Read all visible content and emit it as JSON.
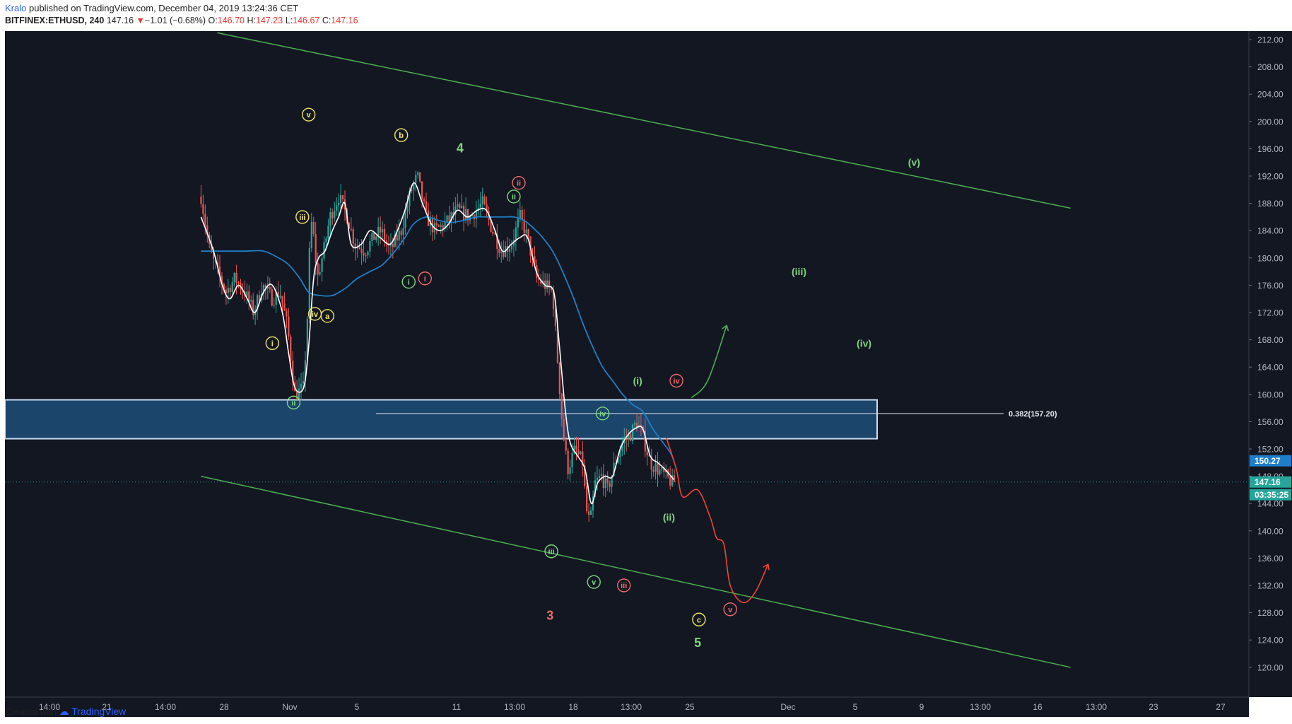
{
  "header": {
    "author": "Kralo",
    "published": "published on TradingView.com, December 04, 2019 13:24:36 CET",
    "symbol": "BITFINEX:ETHUSD, 240",
    "last": "147.16",
    "change": "−1.01 (−0.68%)",
    "o_label": "O:",
    "o": "146.70",
    "h_label": "H:",
    "h": "147.23",
    "l_label": "L:",
    "l": "146.67",
    "c_label": "C:",
    "c": "147.16"
  },
  "footer": {
    "created_with": "Created with",
    "brand": "TradingView"
  },
  "colors": {
    "background": "#131722",
    "up": "#26a69a",
    "down": "#ef5350",
    "ma_fast": "#ffffff",
    "ma_slow": "#1e7ec8",
    "channel": "#4caf50",
    "zone_fill": "#1f4e79",
    "zone_border": "#c8dcf0",
    "projection_green": "#4caf50",
    "projection_red": "#f44336",
    "label_yellow": "#f5e663",
    "label_green": "#7fd87f",
    "label_red": "#f06a6a"
  },
  "chart_data": {
    "type": "candlestick",
    "symbol": "BITFINEX:ETHUSD",
    "interval": "240",
    "ylim": [
      118,
      214
    ],
    "y_ticks": [
      "212.00",
      "208.00",
      "204.00",
      "200.00",
      "196.00",
      "192.00",
      "188.00",
      "184.00",
      "180.00",
      "176.00",
      "172.00",
      "168.00",
      "164.00",
      "160.00",
      "156.00",
      "152.00",
      "148.00",
      "144.00",
      "140.00",
      "136.00",
      "132.00",
      "128.00",
      "124.00",
      "120.00"
    ],
    "x_ticks": [
      "14:00",
      "21",
      "14:00",
      "28",
      "Nov",
      "5",
      "11",
      "13:00",
      "18",
      "13:00",
      "25",
      "Dec",
      "5",
      "9",
      "13:00",
      "16",
      "13:00",
      "23",
      "27"
    ],
    "price_labels": [
      {
        "text": "150.27",
        "value": 150.27,
        "kind": "ma"
      },
      {
        "text": "147.16",
        "value": 147.16,
        "kind": "last"
      },
      {
        "text": "03:35:25",
        "value": 145.3,
        "kind": "timer"
      }
    ],
    "last_price": 147.16,
    "fib_level": {
      "text": "0.382(157.20)",
      "value": 157.2
    },
    "resistance_zone": {
      "low": 153.5,
      "high": 159.2
    },
    "price_path": [
      {
        "day": -12.5,
        "price": 189
      },
      {
        "day": -11.8,
        "price": 181
      },
      {
        "day": -11.2,
        "price": 178
      },
      {
        "day": -10.5,
        "price": 175
      },
      {
        "day": -9.8,
        "price": 177
      },
      {
        "day": -9.0,
        "price": 175
      },
      {
        "day": -8.3,
        "price": 172
      },
      {
        "day": -7.6,
        "price": 176
      },
      {
        "day": -6.8,
        "price": 174
      },
      {
        "day": -6.2,
        "price": 175
      },
      {
        "day": -5.6,
        "price": 170
      },
      {
        "day": -5.0,
        "price": 160
      },
      {
        "day": -4.3,
        "price": 161
      },
      {
        "day": -3.95,
        "price": 173
      },
      {
        "day": -3.75,
        "price": 186
      },
      {
        "day": -3.5,
        "price": 183
      },
      {
        "day": -3.2,
        "price": 177
      },
      {
        "day": -2.7,
        "price": 181
      },
      {
        "day": -2.2,
        "price": 186
      },
      {
        "day": -1.5,
        "price": 189
      },
      {
        "day": -0.8,
        "price": 186
      },
      {
        "day": -0.2,
        "price": 182
      },
      {
        "day": 0.6,
        "price": 181
      },
      {
        "day": 1.3,
        "price": 183
      },
      {
        "day": 1.9,
        "price": 184
      },
      {
        "day": 2.6,
        "price": 181
      },
      {
        "day": 3.5,
        "price": 184
      },
      {
        "day": 4.3,
        "price": 190
      },
      {
        "day": 4.8,
        "price": 192
      },
      {
        "day": 5.5,
        "price": 186
      },
      {
        "day": 6.2,
        "price": 184
      },
      {
        "day": 7.0,
        "price": 185
      },
      {
        "day": 8.0,
        "price": 187
      },
      {
        "day": 9.0,
        "price": 186
      },
      {
        "day": 10.0,
        "price": 188
      },
      {
        "day": 10.8,
        "price": 184
      },
      {
        "day": 11.5,
        "price": 181
      },
      {
        "day": 12.3,
        "price": 182
      },
      {
        "day": 13.0,
        "price": 186
      },
      {
        "day": 13.6,
        "price": 183
      },
      {
        "day": 14.3,
        "price": 177
      },
      {
        "day": 15.0,
        "price": 176
      },
      {
        "day": 15.6,
        "price": 175
      },
      {
        "day": 16.0,
        "price": 165
      },
      {
        "day": 16.4,
        "price": 155
      },
      {
        "day": 16.8,
        "price": 149
      },
      {
        "day": 17.4,
        "price": 152
      },
      {
        "day": 18.0,
        "price": 150
      },
      {
        "day": 18.3,
        "price": 143
      },
      {
        "day": 18.6,
        "price": 141
      },
      {
        "day": 19.0,
        "price": 147
      },
      {
        "day": 19.5,
        "price": 148
      },
      {
        "day": 20.0,
        "price": 146
      },
      {
        "day": 20.6,
        "price": 150
      },
      {
        "day": 21.2,
        "price": 153
      },
      {
        "day": 21.8,
        "price": 154
      },
      {
        "day": 22.3,
        "price": 156
      },
      {
        "day": 22.8,
        "price": 154
      },
      {
        "day": 23.4,
        "price": 150
      },
      {
        "day": 24.0,
        "price": 149
      },
      {
        "day": 24.6,
        "price": 148
      },
      {
        "day": 25.2,
        "price": 147
      },
      {
        "day": 25.4,
        "price": 147.2
      }
    ],
    "ma_fast_path": [
      {
        "day": -12.5,
        "price": 186
      },
      {
        "day": -11.5,
        "price": 181
      },
      {
        "day": -10.8,
        "price": 176
      },
      {
        "day": -10.2,
        "price": 174
      },
      {
        "day": -9.5,
        "price": 176
      },
      {
        "day": -8.8,
        "price": 174
      },
      {
        "day": -8.2,
        "price": 172
      },
      {
        "day": -7.5,
        "price": 175
      },
      {
        "day": -6.8,
        "price": 176
      },
      {
        "day": -6.0,
        "price": 172
      },
      {
        "day": -5.5,
        "price": 166
      },
      {
        "day": -5.0,
        "price": 161
      },
      {
        "day": -4.3,
        "price": 161
      },
      {
        "day": -3.9,
        "price": 167
      },
      {
        "day": -3.5,
        "price": 177
      },
      {
        "day": -3.1,
        "price": 180
      },
      {
        "day": -2.6,
        "price": 181
      },
      {
        "day": -2.0,
        "price": 184
      },
      {
        "day": -1.5,
        "price": 186
      },
      {
        "day": -1.0,
        "price": 188
      },
      {
        "day": -0.5,
        "price": 182
      },
      {
        "day": 0.3,
        "price": 182
      },
      {
        "day": 1.0,
        "price": 184
      },
      {
        "day": 1.8,
        "price": 183
      },
      {
        "day": 2.6,
        "price": 182
      },
      {
        "day": 3.2,
        "price": 184
      },
      {
        "day": 3.8,
        "price": 187
      },
      {
        "day": 4.5,
        "price": 191
      },
      {
        "day": 5.2,
        "price": 188
      },
      {
        "day": 5.9,
        "price": 185
      },
      {
        "day": 6.6,
        "price": 184
      },
      {
        "day": 7.3,
        "price": 185
      },
      {
        "day": 8.0,
        "price": 187
      },
      {
        "day": 8.8,
        "price": 186
      },
      {
        "day": 9.6,
        "price": 187
      },
      {
        "day": 10.3,
        "price": 187
      },
      {
        "day": 11.0,
        "price": 184
      },
      {
        "day": 11.6,
        "price": 181
      },
      {
        "day": 12.3,
        "price": 182
      },
      {
        "day": 13.0,
        "price": 183
      },
      {
        "day": 13.6,
        "price": 183
      },
      {
        "day": 14.3,
        "price": 178
      },
      {
        "day": 15.0,
        "price": 176
      },
      {
        "day": 15.7,
        "price": 175
      },
      {
        "day": 16.1,
        "price": 168
      },
      {
        "day": 16.6,
        "price": 158
      },
      {
        "day": 17.0,
        "price": 153
      },
      {
        "day": 17.6,
        "price": 151
      },
      {
        "day": 18.2,
        "price": 149
      },
      {
        "day": 18.7,
        "price": 144
      },
      {
        "day": 19.2,
        "price": 147
      },
      {
        "day": 19.8,
        "price": 148
      },
      {
        "day": 20.4,
        "price": 148
      },
      {
        "day": 21.0,
        "price": 152
      },
      {
        "day": 21.6,
        "price": 154
      },
      {
        "day": 22.2,
        "price": 155
      },
      {
        "day": 22.8,
        "price": 155
      },
      {
        "day": 23.4,
        "price": 151
      },
      {
        "day": 24.0,
        "price": 150
      },
      {
        "day": 24.6,
        "price": 149
      },
      {
        "day": 25.3,
        "price": 147.5
      }
    ],
    "ma_slow_path": [
      {
        "day": -12.5,
        "price": 181
      },
      {
        "day": -11.5,
        "price": 181
      },
      {
        "day": -10.5,
        "price": 181
      },
      {
        "day": -9.0,
        "price": 181
      },
      {
        "day": -7.5,
        "price": 181
      },
      {
        "day": -6.3,
        "price": 180
      },
      {
        "day": -5.5,
        "price": 179
      },
      {
        "day": -4.6,
        "price": 177
      },
      {
        "day": -3.9,
        "price": 175
      },
      {
        "day": -3.0,
        "price": 174.5
      },
      {
        "day": -2.0,
        "price": 174.5
      },
      {
        "day": -1.0,
        "price": 175.5
      },
      {
        "day": 0.0,
        "price": 177
      },
      {
        "day": 1.0,
        "price": 178
      },
      {
        "day": 2.0,
        "price": 179
      },
      {
        "day": 3.0,
        "price": 181
      },
      {
        "day": 3.8,
        "price": 183
      },
      {
        "day": 4.5,
        "price": 185
      },
      {
        "day": 5.5,
        "price": 186
      },
      {
        "day": 6.5,
        "price": 185.5
      },
      {
        "day": 7.5,
        "price": 185.2
      },
      {
        "day": 8.5,
        "price": 185.5
      },
      {
        "day": 9.5,
        "price": 186
      },
      {
        "day": 10.5,
        "price": 186
      },
      {
        "day": 11.5,
        "price": 186
      },
      {
        "day": 12.5,
        "price": 186
      },
      {
        "day": 13.3,
        "price": 185.5
      },
      {
        "day": 14.0,
        "price": 184.5
      },
      {
        "day": 14.8,
        "price": 183
      },
      {
        "day": 15.6,
        "price": 181
      },
      {
        "day": 16.4,
        "price": 178
      },
      {
        "day": 17.2,
        "price": 174.5
      },
      {
        "day": 18.0,
        "price": 170.5
      },
      {
        "day": 18.8,
        "price": 167
      },
      {
        "day": 19.6,
        "price": 164
      },
      {
        "day": 20.4,
        "price": 162
      },
      {
        "day": 21.2,
        "price": 160
      },
      {
        "day": 22.0,
        "price": 158.5
      },
      {
        "day": 22.8,
        "price": 157.5
      },
      {
        "day": 23.6,
        "price": 155
      },
      {
        "day": 24.4,
        "price": 153
      },
      {
        "day": 25.0,
        "price": 151.5
      },
      {
        "day": 25.3,
        "price": 150.3
      }
    ],
    "channel_upper": [
      {
        "day": -11.2,
        "price": 213
      },
      {
        "day": 57,
        "price": 187.3
      }
    ],
    "channel_lower": [
      {
        "day": -12.5,
        "price": 148
      },
      {
        "day": 57,
        "price": 120
      }
    ],
    "projection_green": [
      {
        "day": 26.7,
        "price": 159.5
      },
      {
        "day": 28.0,
        "price": 162
      },
      {
        "day": 29.5,
        "price": 170
      }
    ],
    "projection_red": [
      {
        "day": 24.7,
        "price": 153.6
      },
      {
        "day": 25.5,
        "price": 149
      },
      {
        "day": 26.0,
        "price": 145
      },
      {
        "day": 27.2,
        "price": 146
      },
      {
        "day": 28.2,
        "price": 142
      },
      {
        "day": 28.7,
        "price": 139
      },
      {
        "day": 29.3,
        "price": 138
      },
      {
        "day": 29.8,
        "price": 132
      },
      {
        "day": 30.8,
        "price": 129.5
      },
      {
        "day": 31.8,
        "price": 131
      },
      {
        "day": 32.8,
        "price": 135
      }
    ],
    "wave_labels": [
      {
        "text": "v",
        "day": -3.9,
        "price": 201,
        "color": "yellow",
        "circle": true
      },
      {
        "text": "iii",
        "day": -4.4,
        "price": 186,
        "color": "yellow",
        "circle": true
      },
      {
        "text": "iv",
        "day": -3.4,
        "price": 171.8,
        "color": "yellow",
        "circle": true
      },
      {
        "text": "a",
        "day": -2.4,
        "price": 171.5,
        "color": "yellow",
        "circle": true
      },
      {
        "text": "i",
        "day": -6.8,
        "price": 167.5,
        "color": "yellow",
        "circle": true
      },
      {
        "text": "ii",
        "day": -5.1,
        "price": 158.8,
        "color": "green",
        "circle": true
      },
      {
        "text": "b",
        "day": 3.5,
        "price": 198,
        "color": "yellow",
        "circle": true
      },
      {
        "text": "4",
        "day": 8.2,
        "price": 196,
        "color": "green",
        "circle": false
      },
      {
        "text": "i",
        "day": 4.1,
        "price": 176.5,
        "color": "green",
        "circle": true
      },
      {
        "text": "i",
        "day": 5.4,
        "price": 177,
        "color": "red",
        "circle": true
      },
      {
        "text": "ii",
        "day": 12.5,
        "price": 189,
        "color": "green",
        "circle": true
      },
      {
        "text": "ii",
        "day": 12.9,
        "price": 191,
        "color": "red",
        "circle": true
      },
      {
        "text": "iv",
        "day": 19.6,
        "price": 157.2,
        "color": "green",
        "circle": true
      },
      {
        "text": "(i)",
        "day": 22.4,
        "price": 162,
        "color": "green",
        "circle": false
      },
      {
        "text": "iv",
        "day": 25.5,
        "price": 162,
        "color": "red",
        "circle": true
      },
      {
        "text": "iii",
        "day": 15.5,
        "price": 137,
        "color": "green",
        "circle": true
      },
      {
        "text": "v",
        "day": 18.9,
        "price": 132.5,
        "color": "green",
        "circle": true
      },
      {
        "text": "iii",
        "day": 21.3,
        "price": 132,
        "color": "red",
        "circle": true
      },
      {
        "text": "3",
        "day": 15.4,
        "price": 127.5,
        "color": "red",
        "circle": false
      },
      {
        "text": "(ii)",
        "day": 24.9,
        "price": 142,
        "color": "green",
        "circle": false
      },
      {
        "text": "c",
        "day": 27.3,
        "price": 127,
        "color": "yellow",
        "circle": true
      },
      {
        "text": "v",
        "day": 29.8,
        "price": 128.5,
        "color": "red",
        "circle": true
      },
      {
        "text": "5",
        "day": 27.2,
        "price": 123.5,
        "color": "green",
        "circle": false
      },
      {
        "text": "(iii)",
        "day": 35.3,
        "price": 178,
        "color": "green",
        "circle": false
      },
      {
        "text": "(iv)",
        "day": 40.5,
        "price": 167.5,
        "color": "green",
        "circle": false
      },
      {
        "text": "(v)",
        "day": 44.5,
        "price": 194,
        "color": "green",
        "circle": false
      }
    ]
  }
}
